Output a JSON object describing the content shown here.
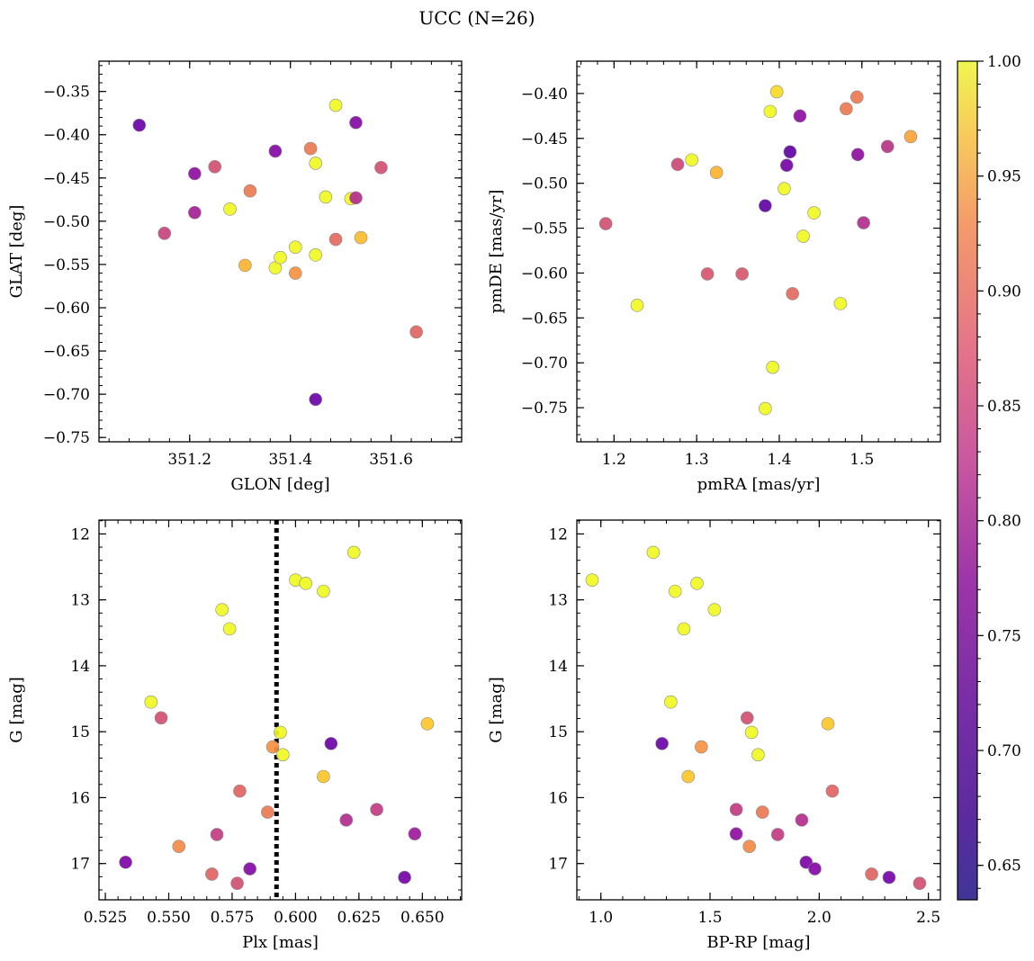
{
  "figure": {
    "title": "UCC (N=26)"
  },
  "colorbar": {
    "cmap": "plasma",
    "vmin": 0.635,
    "vmax": 1.0,
    "ticks": [
      0.65,
      0.7,
      0.75,
      0.8,
      0.85,
      0.9,
      0.95,
      1.0
    ],
    "tick_labels": [
      "0.65",
      "0.70",
      "0.75",
      "0.80",
      "0.85",
      "0.90",
      "0.95",
      "1.00"
    ]
  },
  "chart_data": [
    {
      "type": "scatter",
      "id": "glon-glat",
      "xlabel": "GLON [deg]",
      "ylabel": "GLAT [deg]",
      "xlim": [
        351.02,
        351.74
      ],
      "ylim": [
        -0.755,
        -0.315
      ],
      "y_inverted": false,
      "xticks": [
        351.2,
        351.4,
        351.6
      ],
      "xtick_labels": [
        "351.2",
        "351.4",
        "351.6"
      ],
      "yticks": [
        -0.35,
        -0.4,
        -0.45,
        -0.5,
        -0.55,
        -0.6,
        -0.65,
        -0.7,
        -0.75
      ],
      "ytick_labels": [
        "−0.35",
        "−0.40",
        "−0.45",
        "−0.50",
        "−0.55",
        "−0.60",
        "−0.65",
        "−0.70",
        "−0.75"
      ],
      "points": [
        {
          "x": 351.1,
          "y": -0.389,
          "p": 0.66
        },
        {
          "x": 351.21,
          "y": -0.445,
          "p": 0.7
        },
        {
          "x": 351.25,
          "y": -0.437,
          "p": 0.8
        },
        {
          "x": 351.21,
          "y": -0.49,
          "p": 0.73
        },
        {
          "x": 351.15,
          "y": -0.514,
          "p": 0.78
        },
        {
          "x": 351.28,
          "y": -0.486,
          "p": 1.0
        },
        {
          "x": 351.32,
          "y": -0.465,
          "p": 0.86
        },
        {
          "x": 351.31,
          "y": -0.551,
          "p": 0.93
        },
        {
          "x": 351.37,
          "y": -0.419,
          "p": 0.69
        },
        {
          "x": 351.37,
          "y": -0.554,
          "p": 1.0
        },
        {
          "x": 351.38,
          "y": -0.542,
          "p": 1.0
        },
        {
          "x": 351.41,
          "y": -0.53,
          "p": 1.0
        },
        {
          "x": 351.41,
          "y": -0.56,
          "p": 0.89
        },
        {
          "x": 351.44,
          "y": -0.416,
          "p": 0.86
        },
        {
          "x": 351.45,
          "y": -0.433,
          "p": 1.0
        },
        {
          "x": 351.45,
          "y": -0.539,
          "p": 1.0
        },
        {
          "x": 351.45,
          "y": -0.706,
          "p": 0.66
        },
        {
          "x": 351.47,
          "y": -0.472,
          "p": 1.0
        },
        {
          "x": 351.49,
          "y": -0.366,
          "p": 1.0
        },
        {
          "x": 351.49,
          "y": -0.521,
          "p": 0.84
        },
        {
          "x": 351.52,
          "y": -0.474,
          "p": 1.0
        },
        {
          "x": 351.53,
          "y": -0.473,
          "p": 0.75
        },
        {
          "x": 351.53,
          "y": -0.386,
          "p": 0.69
        },
        {
          "x": 351.54,
          "y": -0.519,
          "p": 0.94
        },
        {
          "x": 351.58,
          "y": -0.438,
          "p": 0.8
        },
        {
          "x": 351.65,
          "y": -0.628,
          "p": 0.83
        }
      ]
    },
    {
      "type": "scatter",
      "id": "pmra-pmde",
      "xlabel": "pmRA [mas/yr]",
      "ylabel": "pmDE [mas/yr]",
      "xlim": [
        1.155,
        1.595
      ],
      "ylim": [
        -0.788,
        -0.364
      ],
      "y_inverted": false,
      "xticks": [
        1.2,
        1.3,
        1.4,
        1.5
      ],
      "xtick_labels": [
        "1.2",
        "1.3",
        "1.4",
        "1.5"
      ],
      "yticks": [
        -0.4,
        -0.45,
        -0.5,
        -0.55,
        -0.6,
        -0.65,
        -0.7,
        -0.75
      ],
      "ytick_labels": [
        "−0.40",
        "−0.45",
        "−0.50",
        "−0.55",
        "−0.60",
        "−0.65",
        "−0.70",
        "−0.75"
      ],
      "points": [
        {
          "x": 1.19,
          "y": -0.545,
          "p": 0.8
        },
        {
          "x": 1.228,
          "y": -0.636,
          "p": 1.0
        },
        {
          "x": 1.277,
          "y": -0.479,
          "p": 0.79
        },
        {
          "x": 1.294,
          "y": -0.474,
          "p": 1.0
        },
        {
          "x": 1.313,
          "y": -0.601,
          "p": 0.81
        },
        {
          "x": 1.324,
          "y": -0.488,
          "p": 0.93
        },
        {
          "x": 1.355,
          "y": -0.601,
          "p": 0.81
        },
        {
          "x": 1.383,
          "y": -0.525,
          "p": 0.65
        },
        {
          "x": 1.383,
          "y": -0.751,
          "p": 1.0
        },
        {
          "x": 1.389,
          "y": -0.42,
          "p": 1.0
        },
        {
          "x": 1.392,
          "y": -0.705,
          "p": 1.0
        },
        {
          "x": 1.397,
          "y": -0.398,
          "p": 0.97
        },
        {
          "x": 1.406,
          "y": -0.506,
          "p": 1.0
        },
        {
          "x": 1.409,
          "y": -0.48,
          "p": 0.67
        },
        {
          "x": 1.413,
          "y": -0.465,
          "p": 0.65
        },
        {
          "x": 1.416,
          "y": -0.623,
          "p": 0.84
        },
        {
          "x": 1.425,
          "y": -0.425,
          "p": 0.7
        },
        {
          "x": 1.429,
          "y": -0.559,
          "p": 1.0
        },
        {
          "x": 1.442,
          "y": -0.533,
          "p": 1.0
        },
        {
          "x": 1.474,
          "y": -0.634,
          "p": 1.0
        },
        {
          "x": 1.481,
          "y": -0.417,
          "p": 0.86
        },
        {
          "x": 1.494,
          "y": -0.404,
          "p": 0.86
        },
        {
          "x": 1.495,
          "y": -0.468,
          "p": 0.7
        },
        {
          "x": 1.502,
          "y": -0.544,
          "p": 0.75
        },
        {
          "x": 1.531,
          "y": -0.459,
          "p": 0.76
        },
        {
          "x": 1.559,
          "y": -0.448,
          "p": 0.91
        }
      ]
    },
    {
      "type": "scatter",
      "id": "plx-g",
      "xlabel": "Plx [mas]",
      "ylabel": "G [mag]",
      "xlim": [
        0.5225,
        0.6655
      ],
      "ylim": [
        11.79,
        17.55
      ],
      "y_inverted": true,
      "vline": {
        "x": 0.5925,
        "style": "dotted"
      },
      "xticks": [
        0.525,
        0.55,
        0.575,
        0.6,
        0.625,
        0.65
      ],
      "xtick_labels": [
        "0.525",
        "0.550",
        "0.575",
        "0.600",
        "0.625",
        "0.650"
      ],
      "yticks": [
        12,
        13,
        14,
        15,
        16,
        17
      ],
      "ytick_labels": [
        "12",
        "13",
        "14",
        "15",
        "16",
        "17"
      ],
      "points": [
        {
          "x": 0.533,
          "y": 16.98,
          "p": 0.68
        },
        {
          "x": 0.543,
          "y": 14.55,
          "p": 1.0
        },
        {
          "x": 0.547,
          "y": 14.79,
          "p": 0.8
        },
        {
          "x": 0.554,
          "y": 16.74,
          "p": 0.88
        },
        {
          "x": 0.567,
          "y": 17.16,
          "p": 0.83
        },
        {
          "x": 0.569,
          "y": 16.56,
          "p": 0.77
        },
        {
          "x": 0.571,
          "y": 13.15,
          "p": 1.0
        },
        {
          "x": 0.574,
          "y": 13.44,
          "p": 1.0
        },
        {
          "x": 0.577,
          "y": 17.3,
          "p": 0.8
        },
        {
          "x": 0.578,
          "y": 15.9,
          "p": 0.83
        },
        {
          "x": 0.582,
          "y": 17.08,
          "p": 0.69
        },
        {
          "x": 0.589,
          "y": 16.22,
          "p": 0.86
        },
        {
          "x": 0.591,
          "y": 15.23,
          "p": 0.89
        },
        {
          "x": 0.594,
          "y": 15.01,
          "p": 1.0
        },
        {
          "x": 0.595,
          "y": 15.35,
          "p": 1.0
        },
        {
          "x": 0.6,
          "y": 12.7,
          "p": 1.0
        },
        {
          "x": 0.604,
          "y": 12.75,
          "p": 1.0
        },
        {
          "x": 0.611,
          "y": 15.68,
          "p": 0.95
        },
        {
          "x": 0.611,
          "y": 12.87,
          "p": 1.0
        },
        {
          "x": 0.614,
          "y": 15.18,
          "p": 0.66
        },
        {
          "x": 0.62,
          "y": 16.34,
          "p": 0.75
        },
        {
          "x": 0.623,
          "y": 12.28,
          "p": 1.0
        },
        {
          "x": 0.632,
          "y": 16.18,
          "p": 0.77
        },
        {
          "x": 0.643,
          "y": 17.21,
          "p": 0.67
        },
        {
          "x": 0.647,
          "y": 16.55,
          "p": 0.72
        },
        {
          "x": 0.652,
          "y": 14.88,
          "p": 0.95
        }
      ]
    },
    {
      "type": "scatter",
      "id": "bprp-g",
      "xlabel": "BP-RP [mag]",
      "ylabel": "G [mag]",
      "xlim": [
        0.89,
        2.555
      ],
      "ylim": [
        11.79,
        17.55
      ],
      "y_inverted": true,
      "xticks": [
        1.0,
        1.5,
        2.0,
        2.5
      ],
      "xtick_labels": [
        "1.0",
        "1.5",
        "2.0",
        "2.5"
      ],
      "yticks": [
        12,
        13,
        14,
        15,
        16,
        17
      ],
      "ytick_labels": [
        "12",
        "13",
        "14",
        "15",
        "16",
        "17"
      ],
      "points": [
        {
          "x": 0.96,
          "y": 12.7,
          "p": 1.0
        },
        {
          "x": 1.24,
          "y": 12.28,
          "p": 1.0
        },
        {
          "x": 1.28,
          "y": 15.18,
          "p": 0.66
        },
        {
          "x": 1.32,
          "y": 14.55,
          "p": 1.0
        },
        {
          "x": 1.34,
          "y": 12.87,
          "p": 1.0
        },
        {
          "x": 1.38,
          "y": 13.44,
          "p": 1.0
        },
        {
          "x": 1.4,
          "y": 15.68,
          "p": 0.95
        },
        {
          "x": 1.44,
          "y": 12.75,
          "p": 1.0
        },
        {
          "x": 1.46,
          "y": 15.23,
          "p": 0.89
        },
        {
          "x": 1.52,
          "y": 13.15,
          "p": 1.0
        },
        {
          "x": 1.62,
          "y": 16.55,
          "p": 0.7
        },
        {
          "x": 1.62,
          "y": 16.18,
          "p": 0.77
        },
        {
          "x": 1.67,
          "y": 14.79,
          "p": 0.8
        },
        {
          "x": 1.68,
          "y": 16.74,
          "p": 0.88
        },
        {
          "x": 1.69,
          "y": 15.01,
          "p": 1.0
        },
        {
          "x": 1.72,
          "y": 15.35,
          "p": 1.0
        },
        {
          "x": 1.74,
          "y": 16.22,
          "p": 0.86
        },
        {
          "x": 1.81,
          "y": 16.56,
          "p": 0.77
        },
        {
          "x": 1.92,
          "y": 16.34,
          "p": 0.75
        },
        {
          "x": 1.94,
          "y": 16.98,
          "p": 0.68
        },
        {
          "x": 1.98,
          "y": 17.08,
          "p": 0.69
        },
        {
          "x": 2.04,
          "y": 14.88,
          "p": 0.95
        },
        {
          "x": 2.06,
          "y": 15.9,
          "p": 0.83
        },
        {
          "x": 2.24,
          "y": 17.16,
          "p": 0.83
        },
        {
          "x": 2.32,
          "y": 17.21,
          "p": 0.67
        },
        {
          "x": 2.46,
          "y": 17.3,
          "p": 0.8
        }
      ]
    }
  ]
}
